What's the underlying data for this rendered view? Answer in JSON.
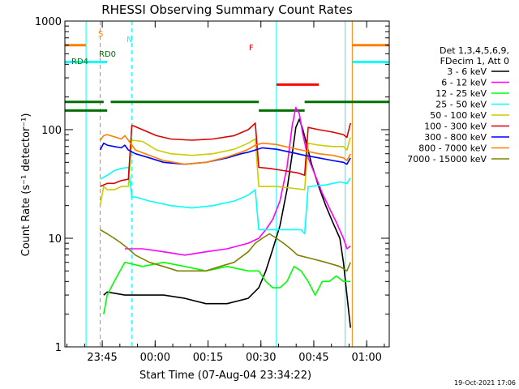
{
  "chart_data": {
    "type": "line",
    "title": "RHESSI Observing Summary Count Rates",
    "xlabel": "Start Time (07-Aug-04 23:34:22)",
    "ylabel": "Count Rate (s⁻¹ detector⁻¹)",
    "yscale": "log",
    "ylim": [
      1,
      1000
    ],
    "xlim_minutes": [
      0,
      92
    ],
    "x_ticks": [
      {
        "label": "23:45",
        "m": 10.6
      },
      {
        "label": "00:00",
        "m": 25.6
      },
      {
        "label": "00:15",
        "m": 40.6
      },
      {
        "label": "00:30",
        "m": 55.6
      },
      {
        "label": "00:45",
        "m": 70.6
      },
      {
        "label": "01:00",
        "m": 85.6
      }
    ],
    "y_ticks": [
      {
        "label": "1",
        "v": 1
      },
      {
        "label": "10",
        "v": 10
      },
      {
        "label": "100",
        "v": 100
      },
      {
        "label": "1000",
        "v": 1000
      }
    ],
    "legend_header": [
      "Det 1,3,4,5,6,9,",
      "FDecim 1, Att 0"
    ],
    "series": [
      {
        "name": "3 - 6 keV",
        "color": "#000000",
        "points": [
          [
            11,
            3
          ],
          [
            12,
            3.2
          ],
          [
            17,
            3
          ],
          [
            22,
            3
          ],
          [
            28,
            3
          ],
          [
            34,
            2.8
          ],
          [
            40,
            2.5
          ],
          [
            46,
            2.5
          ],
          [
            52,
            2.8
          ],
          [
            55,
            3.5
          ],
          [
            57,
            5
          ],
          [
            59,
            8
          ],
          [
            61,
            13
          ],
          [
            63,
            28
          ],
          [
            64.5,
            60
          ],
          [
            65.5,
            105
          ],
          [
            66.5,
            125
          ],
          [
            67.5,
            100
          ],
          [
            68.5,
            75
          ],
          [
            70,
            48
          ],
          [
            72,
            30
          ],
          [
            74,
            20
          ],
          [
            76,
            14
          ],
          [
            78,
            10
          ],
          [
            79,
            6
          ],
          [
            80,
            3
          ],
          [
            81,
            1.5
          ]
        ]
      },
      {
        "name": "6 - 12 keV",
        "color": "#ff00ff",
        "points": [
          [
            17,
            8
          ],
          [
            22,
            8
          ],
          [
            28,
            7.5
          ],
          [
            34,
            7
          ],
          [
            40,
            7.5
          ],
          [
            46,
            8
          ],
          [
            52,
            9
          ],
          [
            55,
            10
          ],
          [
            57,
            12
          ],
          [
            59,
            15
          ],
          [
            61,
            22
          ],
          [
            63,
            45
          ],
          [
            64.5,
            110
          ],
          [
            65.5,
            160
          ],
          [
            66.5,
            140
          ],
          [
            67.5,
            90
          ],
          [
            69,
            55
          ],
          [
            71,
            38
          ],
          [
            73,
            26
          ],
          [
            75,
            19
          ],
          [
            77,
            14
          ],
          [
            79,
            10
          ],
          [
            80,
            8
          ],
          [
            81,
            8.5
          ]
        ]
      },
      {
        "name": "12 - 25 keV",
        "color": "#00ff00",
        "points": [
          [
            11,
            2
          ],
          [
            12,
            3
          ],
          [
            14,
            4
          ],
          [
            17,
            6
          ],
          [
            22,
            5.5
          ],
          [
            28,
            6
          ],
          [
            34,
            5.5
          ],
          [
            40,
            5
          ],
          [
            46,
            5.5
          ],
          [
            52,
            5
          ],
          [
            55,
            5
          ],
          [
            57,
            4
          ],
          [
            59,
            3.5
          ],
          [
            61,
            3.5
          ],
          [
            63,
            4
          ],
          [
            65,
            5.5
          ],
          [
            67,
            5
          ],
          [
            69,
            4
          ],
          [
            71,
            3
          ],
          [
            73,
            4
          ],
          [
            75,
            4
          ],
          [
            77,
            4.5
          ],
          [
            79,
            4
          ],
          [
            80,
            4
          ],
          [
            81,
            4
          ]
        ]
      },
      {
        "name": "25 - 50 keV",
        "color": "#00ffff",
        "points": [
          [
            10,
            35
          ],
          [
            12,
            38
          ],
          [
            14,
            42
          ],
          [
            16,
            44
          ],
          [
            18,
            45
          ],
          [
            19,
            24
          ],
          [
            20,
            24
          ],
          [
            24,
            22
          ],
          [
            30,
            20
          ],
          [
            36,
            19
          ],
          [
            42,
            20
          ],
          [
            48,
            22
          ],
          [
            52,
            25
          ],
          [
            54,
            28
          ],
          [
            55,
            12
          ],
          [
            60,
            12
          ],
          [
            64,
            12
          ],
          [
            67,
            12
          ],
          [
            68,
            11
          ],
          [
            69,
            30
          ],
          [
            74,
            31
          ],
          [
            78,
            33
          ],
          [
            80,
            32
          ],
          [
            81,
            36
          ]
        ]
      },
      {
        "name": "50 - 100 keV",
        "color": "#cccc00",
        "points": [
          [
            10,
            20
          ],
          [
            11,
            30
          ],
          [
            12,
            28
          ],
          [
            14,
            28
          ],
          [
            16,
            30
          ],
          [
            18,
            30
          ],
          [
            19,
            80
          ],
          [
            22,
            78
          ],
          [
            26,
            65
          ],
          [
            30,
            60
          ],
          [
            36,
            58
          ],
          [
            42,
            60
          ],
          [
            48,
            66
          ],
          [
            52,
            75
          ],
          [
            54,
            82
          ],
          [
            55,
            30
          ],
          [
            60,
            30
          ],
          [
            64,
            29
          ],
          [
            68,
            28
          ],
          [
            69,
            75
          ],
          [
            72,
            72
          ],
          [
            76,
            70
          ],
          [
            79,
            70
          ],
          [
            80,
            65
          ],
          [
            81,
            85
          ]
        ]
      },
      {
        "name": "100 - 300 keV",
        "color": "#dd0000",
        "points": [
          [
            10,
            30
          ],
          [
            12,
            32
          ],
          [
            14,
            32
          ],
          [
            16,
            34
          ],
          [
            18,
            35
          ],
          [
            19,
            110
          ],
          [
            22,
            100
          ],
          [
            26,
            88
          ],
          [
            30,
            82
          ],
          [
            36,
            80
          ],
          [
            42,
            82
          ],
          [
            48,
            88
          ],
          [
            52,
            100
          ],
          [
            54,
            115
          ],
          [
            55,
            45
          ],
          [
            58,
            44
          ],
          [
            62,
            42
          ],
          [
            66,
            40
          ],
          [
            68,
            38
          ],
          [
            69,
            105
          ],
          [
            72,
            100
          ],
          [
            76,
            95
          ],
          [
            79,
            90
          ],
          [
            80,
            85
          ],
          [
            81,
            115
          ]
        ]
      },
      {
        "name": "300 - 800 keV",
        "color": "#0000ff",
        "points": [
          [
            10,
            65
          ],
          [
            11,
            75
          ],
          [
            12,
            72
          ],
          [
            14,
            70
          ],
          [
            16,
            68
          ],
          [
            17,
            72
          ],
          [
            18,
            65
          ],
          [
            20,
            60
          ],
          [
            24,
            55
          ],
          [
            28,
            50
          ],
          [
            34,
            48
          ],
          [
            40,
            50
          ],
          [
            46,
            55
          ],
          [
            50,
            60
          ],
          [
            52,
            62
          ],
          [
            54,
            65
          ],
          [
            56,
            68
          ],
          [
            60,
            66
          ],
          [
            64,
            62
          ],
          [
            68,
            58
          ],
          [
            72,
            55
          ],
          [
            76,
            52
          ],
          [
            79,
            50
          ],
          [
            80,
            48
          ],
          [
            81,
            55
          ]
        ]
      },
      {
        "name": "800 - 7000 keV",
        "color": "#ff8000",
        "points": [
          [
            10,
            80
          ],
          [
            11,
            88
          ],
          [
            12,
            90
          ],
          [
            14,
            86
          ],
          [
            16,
            82
          ],
          [
            17,
            88
          ],
          [
            18,
            80
          ],
          [
            20,
            65
          ],
          [
            24,
            58
          ],
          [
            28,
            52
          ],
          [
            34,
            48
          ],
          [
            40,
            50
          ],
          [
            46,
            56
          ],
          [
            50,
            62
          ],
          [
            52,
            66
          ],
          [
            54,
            72
          ],
          [
            56,
            75
          ],
          [
            60,
            73
          ],
          [
            64,
            68
          ],
          [
            68,
            64
          ],
          [
            72,
            60
          ],
          [
            76,
            58
          ],
          [
            79,
            55
          ],
          [
            80,
            52
          ],
          [
            81,
            60
          ]
        ]
      },
      {
        "name": "7000 - 15000 keV",
        "color": "#808000",
        "points": [
          [
            10,
            12
          ],
          [
            12,
            11
          ],
          [
            14,
            10
          ],
          [
            16,
            9
          ],
          [
            18,
            8
          ],
          [
            20,
            7
          ],
          [
            24,
            6
          ],
          [
            28,
            5.5
          ],
          [
            32,
            5
          ],
          [
            36,
            5
          ],
          [
            40,
            5
          ],
          [
            44,
            5.5
          ],
          [
            48,
            6
          ],
          [
            52,
            7.5
          ],
          [
            54,
            9
          ],
          [
            56,
            10
          ],
          [
            58,
            11
          ],
          [
            60,
            10
          ],
          [
            62,
            9
          ],
          [
            64,
            8
          ],
          [
            66,
            7
          ],
          [
            70,
            6.5
          ],
          [
            74,
            6
          ],
          [
            78,
            5.5
          ],
          [
            80,
            5
          ],
          [
            81,
            6
          ]
        ]
      }
    ],
    "flags": [
      {
        "label": "S",
        "color": "#ff8000",
        "value": 600,
        "segments": [
          [
            0,
            6
          ],
          [
            81.5,
            92
          ]
        ]
      },
      {
        "label": "N",
        "color": "#00ffff",
        "value": 420,
        "segments": [
          [
            0,
            12
          ],
          [
            81.5,
            92
          ]
        ]
      },
      {
        "label": "F",
        "color": "#ff0000",
        "value": 260,
        "segments": [
          [
            60,
            72
          ]
        ]
      },
      {
        "label": "RD0",
        "color": "#007000",
        "value": 180,
        "segments": [
          [
            0,
            11
          ],
          [
            13,
            55
          ],
          [
            68,
            92
          ]
        ]
      },
      {
        "label": "RD4",
        "color": "#007000",
        "value": 150,
        "segments": [
          [
            0,
            12
          ],
          [
            55,
            68
          ]
        ]
      }
    ],
    "vertical_markers": [
      {
        "m": 6,
        "color": "#00ffff",
        "style": "solid"
      },
      {
        "m": 60,
        "color": "#00ffff",
        "style": "solid"
      },
      {
        "m": 10,
        "color": "#ff8000",
        "style": "dashed"
      },
      {
        "m": 19,
        "color": "#00ffff",
        "style": "dashed"
      },
      {
        "m": 79.5,
        "color": "#00ffff",
        "style": "solid"
      },
      {
        "m": 81.5,
        "color": "#ff8000",
        "style": "solid"
      },
      {
        "m": 92,
        "color": "#00ffff",
        "style": "dashed"
      },
      {
        "m": 92,
        "color": "#ff8000",
        "style": "dashed"
      }
    ],
    "timestamp": "19-Oct-2021 17:06"
  }
}
